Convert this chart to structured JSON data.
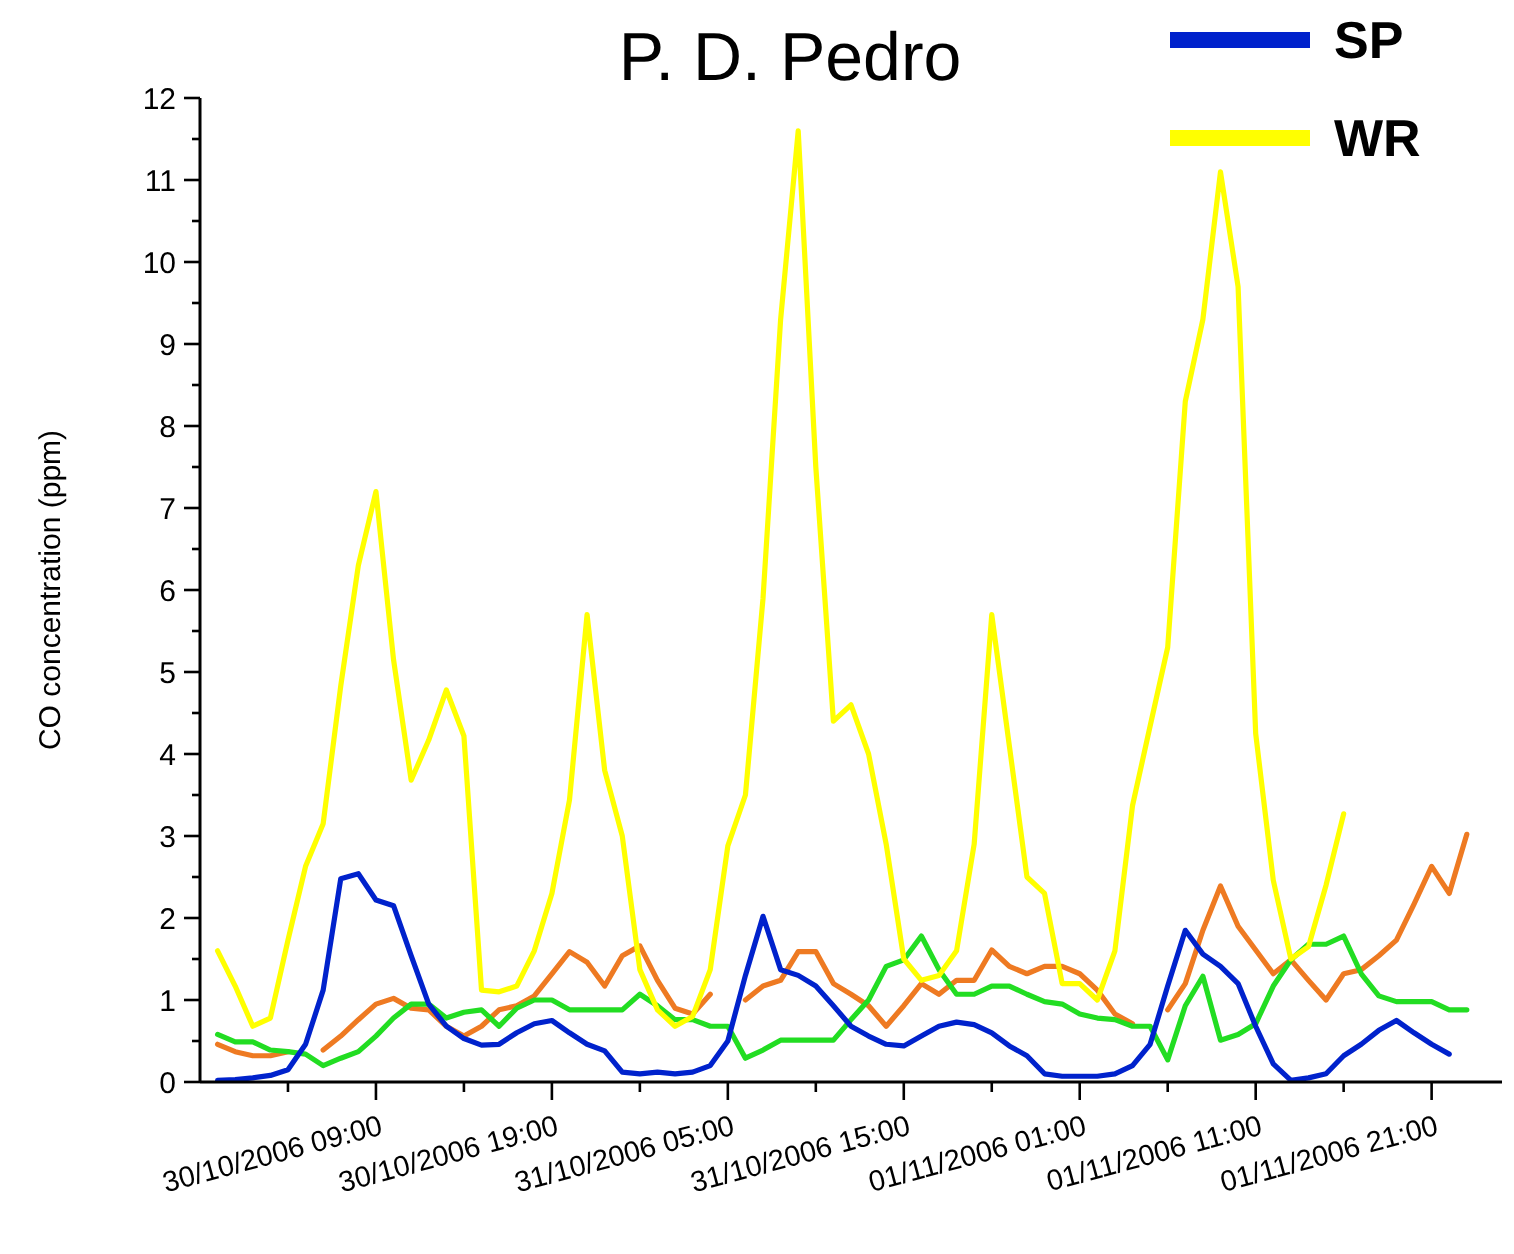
{
  "chart_data": {
    "type": "line",
    "title": "P. D. Pedro",
    "ylabel": "CO concentration (ppm)",
    "x": [
      "2006-10-30T00:00",
      "2006-10-30T01:00",
      "2006-10-30T02:00",
      "2006-10-30T03:00",
      "2006-10-30T04:00",
      "2006-10-30T05:00",
      "2006-10-30T06:00",
      "2006-10-30T07:00",
      "2006-10-30T08:00",
      "2006-10-30T09:00",
      "2006-10-30T10:00",
      "2006-10-30T11:00",
      "2006-10-30T12:00",
      "2006-10-30T13:00",
      "2006-10-30T14:00",
      "2006-10-30T15:00",
      "2006-10-30T16:00",
      "2006-10-30T17:00",
      "2006-10-30T18:00",
      "2006-10-30T19:00",
      "2006-10-30T20:00",
      "2006-10-30T21:00",
      "2006-10-30T22:00",
      "2006-10-30T23:00",
      "2006-10-31T00:00",
      "2006-10-31T01:00",
      "2006-10-31T02:00",
      "2006-10-31T03:00",
      "2006-10-31T04:00",
      "2006-10-31T05:00",
      "2006-10-31T06:00",
      "2006-10-31T07:00",
      "2006-10-31T08:00",
      "2006-10-31T09:00",
      "2006-10-31T10:00",
      "2006-10-31T11:00",
      "2006-10-31T12:00",
      "2006-10-31T13:00",
      "2006-10-31T14:00",
      "2006-10-31T15:00",
      "2006-10-31T16:00",
      "2006-10-31T17:00",
      "2006-10-31T18:00",
      "2006-10-31T19:00",
      "2006-10-31T20:00",
      "2006-10-31T21:00",
      "2006-10-31T22:00",
      "2006-10-31T23:00",
      "2006-11-01T00:00",
      "2006-11-01T01:00",
      "2006-11-01T02:00",
      "2006-11-01T03:00",
      "2006-11-01T04:00",
      "2006-11-01T05:00",
      "2006-11-01T06:00",
      "2006-11-01T07:00",
      "2006-11-01T08:00",
      "2006-11-01T09:00",
      "2006-11-01T10:00",
      "2006-11-01T11:00",
      "2006-11-01T12:00",
      "2006-11-01T13:00",
      "2006-11-01T14:00",
      "2006-11-01T15:00",
      "2006-11-01T16:00",
      "2006-11-01T17:00",
      "2006-11-01T18:00",
      "2006-11-01T19:00",
      "2006-11-01T20:00",
      "2006-11-01T21:00",
      "2006-11-01T22:00",
      "2006-11-01T23:00"
    ],
    "series": [
      {
        "color": "#ee7a22",
        "values": [
          0.46,
          0.37,
          0.32,
          0.32,
          0.37,
          null,
          0.39,
          0.56,
          0.76,
          0.95,
          1.02,
          0.9,
          0.88,
          0.68,
          0.56,
          0.68,
          0.88,
          0.93,
          1.05,
          1.32,
          1.59,
          1.46,
          1.17,
          1.54,
          1.66,
          1.24,
          0.9,
          0.83,
          1.07,
          null,
          1.0,
          1.17,
          1.24,
          1.59,
          1.59,
          1.2,
          1.07,
          0.93,
          0.68,
          0.93,
          1.2,
          1.07,
          1.24,
          1.24,
          1.61,
          1.41,
          1.32,
          1.41,
          1.41,
          1.32,
          1.12,
          0.83,
          0.71,
          null,
          0.88,
          1.2,
          1.85,
          2.39,
          1.9,
          1.61,
          1.32,
          1.49,
          1.24,
          1.0,
          1.32,
          1.37,
          1.54,
          1.73,
          2.17,
          2.63,
          2.3,
          3.02
        ]
      },
      {
        "color": "#22dd22",
        "values": [
          0.58,
          0.49,
          0.49,
          0.39,
          0.37,
          0.34,
          0.2,
          0.29,
          0.37,
          0.56,
          0.78,
          0.95,
          0.95,
          0.78,
          0.85,
          0.88,
          0.68,
          0.9,
          1.0,
          1.0,
          0.88,
          0.88,
          0.88,
          0.88,
          1.07,
          0.93,
          0.76,
          0.76,
          0.68,
          0.68,
          0.29,
          0.39,
          0.51,
          0.51,
          0.51,
          0.51,
          0.76,
          1.0,
          1.41,
          1.49,
          1.78,
          1.37,
          1.07,
          1.07,
          1.17,
          1.17,
          1.07,
          0.98,
          0.95,
          0.83,
          0.78,
          0.76,
          0.68,
          0.68,
          0.27,
          0.93,
          1.29,
          0.51,
          0.58,
          0.71,
          1.17,
          1.49,
          1.68,
          1.68,
          1.78,
          1.32,
          1.05,
          0.98,
          0.98,
          0.98,
          0.88,
          0.88
        ]
      },
      {
        "name": "SP",
        "color": "#0022cc",
        "values": [
          0.02,
          0.03,
          0.05,
          0.08,
          0.15,
          0.46,
          1.12,
          2.48,
          2.54,
          2.22,
          2.15,
          1.54,
          0.95,
          0.68,
          0.53,
          0.45,
          0.46,
          0.6,
          0.71,
          0.75,
          0.6,
          0.46,
          0.38,
          0.12,
          0.1,
          0.12,
          0.1,
          0.12,
          0.2,
          0.5,
          1.3,
          2.02,
          1.37,
          1.3,
          1.17,
          0.93,
          0.68,
          0.56,
          0.46,
          0.44,
          0.56,
          0.68,
          0.73,
          0.7,
          0.6,
          0.44,
          0.32,
          0.1,
          0.07,
          0.07,
          0.07,
          0.1,
          0.2,
          0.46,
          1.17,
          1.85,
          1.56,
          1.41,
          1.2,
          0.68,
          0.22,
          0.02,
          0.05,
          0.1,
          0.32,
          0.46,
          0.63,
          0.75,
          0.6,
          0.46,
          0.34,
          null
        ]
      },
      {
        "name": "WR",
        "color": "#ffff00",
        "values": [
          1.6,
          1.17,
          0.68,
          0.78,
          1.73,
          2.63,
          3.15,
          4.83,
          6.3,
          7.2,
          5.15,
          3.68,
          4.17,
          4.78,
          4.22,
          1.12,
          1.1,
          1.17,
          1.6,
          2.3,
          3.44,
          5.7,
          3.8,
          3.0,
          1.37,
          0.88,
          0.68,
          0.8,
          1.37,
          2.88,
          3.5,
          5.9,
          9.3,
          11.6,
          7.5,
          4.4,
          4.6,
          4.0,
          2.9,
          1.5,
          1.24,
          1.3,
          1.6,
          2.9,
          5.7,
          4.1,
          2.5,
          2.3,
          1.2,
          1.2,
          1.0,
          1.6,
          3.37,
          4.34,
          5.3,
          8.3,
          9.3,
          11.1,
          9.7,
          4.25,
          2.46,
          1.5,
          1.65,
          2.4,
          3.27,
          null,
          null,
          null,
          null,
          null,
          null,
          null
        ]
      }
    ],
    "xlim": [
      "2006-10-29T23:00",
      "2006-11-02T01:00"
    ],
    "xticks": [
      {
        "value": "2006-10-30T04:00",
        "label": null
      },
      {
        "value": "2006-10-30T09:00",
        "label": "30/10/2006 09:00"
      },
      {
        "value": "2006-10-30T14:00",
        "label": null
      },
      {
        "value": "2006-10-30T19:00",
        "label": "30/10/2006 19:00"
      },
      {
        "value": "2006-10-31T00:00",
        "label": null
      },
      {
        "value": "2006-10-31T05:00",
        "label": "31/10/2006 05:00"
      },
      {
        "value": "2006-10-31T10:00",
        "label": null
      },
      {
        "value": "2006-10-31T15:00",
        "label": "31/10/2006 15:00"
      },
      {
        "value": "2006-10-31T20:00",
        "label": null
      },
      {
        "value": "2006-11-01T01:00",
        "label": "01/11/2006 01:00"
      },
      {
        "value": "2006-11-01T06:00",
        "label": null
      },
      {
        "value": "2006-11-01T11:00",
        "label": "01/11/2006 11:00"
      },
      {
        "value": "2006-11-01T16:00",
        "label": null
      },
      {
        "value": "2006-11-01T21:00",
        "label": "01/11/2006 21:00"
      }
    ],
    "ylim": [
      0,
      12
    ],
    "yticks": [
      0,
      {
        "value": 0.5,
        "label": null
      },
      1,
      {
        "value": 1.5,
        "label": null
      },
      2,
      {
        "value": 2.5,
        "label": null
      },
      3,
      {
        "value": 3.5,
        "label": null
      },
      4,
      {
        "value": 4.5,
        "label": null
      },
      5,
      {
        "value": 5.5,
        "label": null
      },
      6,
      {
        "value": 6.5,
        "label": null
      },
      7,
      {
        "value": 7.5,
        "label": null
      },
      8,
      {
        "value": 8.5,
        "label": null
      },
      9,
      {
        "value": 9.5,
        "label": null
      },
      10,
      {
        "value": 10.5,
        "label": null
      },
      11,
      {
        "value": 11.5,
        "label": null
      },
      12
    ],
    "grid": false,
    "legend": "top right",
    "marker": "none",
    "line_style": "solid"
  }
}
